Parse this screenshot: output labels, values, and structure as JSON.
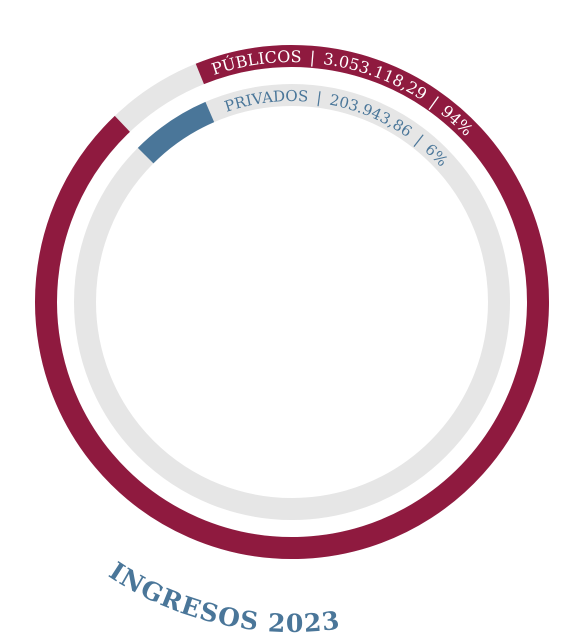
{
  "chart_data": {
    "type": "radial",
    "title": "INGRESOS 2023",
    "categories": [
      "PÚBLICOS",
      "PRIVADOS"
    ],
    "values": [
      3053118.29,
      203943.86
    ],
    "value_labels": [
      "3.053.118,29",
      "203.943,86"
    ],
    "percents": [
      94,
      6
    ],
    "percent_labels": [
      "94%",
      "6%"
    ],
    "separator": "|",
    "colors": [
      "#8f1a3f",
      "#4a7699"
    ],
    "track_color": "#e6e6e6"
  }
}
